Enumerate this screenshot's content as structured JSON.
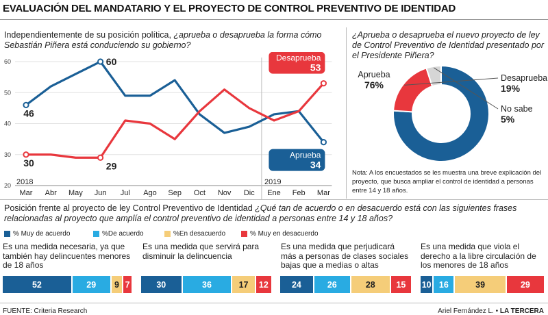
{
  "title": "EVALUACIÓN DEL MANDATARIO Y EL PROYECTO DE CONTROL PREVENTIVO DE IDENTIDAD",
  "colors": {
    "blue": "#1a5f96",
    "red": "#e8373d",
    "lightblue": "#29abe2",
    "yellow": "#f5cd79",
    "grey": "#d6d6d6"
  },
  "left_question": {
    "plain": "Independientemente de su posición política, ",
    "italic": "¿aprueba o desaprueba la forma cómo Sebastián Piñera está conduciendo su gobierno?"
  },
  "right_question": "¿Aprueba o desaprueba el nuevo proyecto de ley de Control Preventivo de Identidad presentado por el Presidente Piñera?",
  "note": "Nota: A los encuestados se les muestra una breve explicación del proyecto, que busca ampliar el control de identidad a personas entre 14 y 18 años.",
  "bottom_question": {
    "plain": "Posición frente al proyecto de ley Control Preventivo de Identidad ",
    "italic": "¿Qué tan de acuerdo o en desacuerdo está con las siguientes frases relacionadas al proyecto que amplía el control preventivo de identidad a personas entre 14 y 18 años?"
  },
  "legend": [
    "% Muy de acuerdo",
    "%De acuerdo",
    "%En desacuerdo",
    "% Muy en desacuerdo"
  ],
  "statements": [
    "Es una medida necesaria, ya que también hay delincuentes menores de 18 años",
    "Es una medida que servirá para disminuir la delincuencia",
    "Es una medida que perjudicará más a personas de clases sociales bajas que a medias o altas",
    "Es una medida que viola el derecho a la libre circulación de los menores de 18 años"
  ],
  "source": "FUENTE: Criteria Research",
  "credit_author": "Ariel Fernández L. •",
  "credit_outlet": "LA TERCERA",
  "chart_data": [
    {
      "type": "line",
      "x": [
        "Mar",
        "Abr",
        "May",
        "Jun",
        "Jul",
        "Ago",
        "Sep",
        "Oct",
        "Nov",
        "Dic",
        "Ene",
        "Feb",
        "Mar"
      ],
      "year_labels": [
        {
          "label": "2018",
          "index": 0
        },
        {
          "label": "2019",
          "index": 10
        }
      ],
      "ylim": [
        20,
        60
      ],
      "yticks": [
        20,
        30,
        40,
        50,
        60
      ],
      "series": [
        {
          "name": "Aprueba",
          "color": "#1a5f96",
          "values": [
            46,
            52,
            56,
            60,
            49,
            49,
            54,
            43,
            37,
            39,
            43,
            44,
            34
          ]
        },
        {
          "name": "Desaprueba",
          "color": "#e8373d",
          "values": [
            30,
            30,
            29,
            29,
            41,
            40,
            35,
            44,
            51,
            45,
            41,
            44,
            53
          ]
        }
      ],
      "point_labels": [
        {
          "series": 0,
          "index": 0,
          "text": "46"
        },
        {
          "series": 0,
          "index": 3,
          "text": "60"
        },
        {
          "series": 1,
          "index": 0,
          "text": "30"
        },
        {
          "series": 1,
          "index": 3,
          "text": "29"
        }
      ],
      "end_badges": [
        {
          "series": 1,
          "label": "Desaprueba",
          "value": "53"
        },
        {
          "series": 0,
          "label": "Aprueba",
          "value": "34"
        }
      ]
    },
    {
      "type": "pie",
      "slices": [
        {
          "label": "Aprueba",
          "value": 76,
          "display": "76%",
          "color": "#1a5f96"
        },
        {
          "label": "Desaprueba",
          "value": 19,
          "display": "19%",
          "color": "#e8373d"
        },
        {
          "label": "No sabe",
          "value": 5,
          "display": "5%",
          "color": "#d6d6d6"
        }
      ]
    },
    {
      "type": "bar",
      "stacked": true,
      "orientation": "horizontal",
      "categories": [
        "Es una medida necesaria, ya que también hay delincuentes menores de 18 años",
        "Es una medida que servirá para disminuir la delincuencia",
        "Es una medida que perjudicará más a personas de clases sociales bajas que a medias o altas",
        "Es una medida que viola el derecho a la libre circulación de los menores de 18 años"
      ],
      "series": [
        {
          "name": "% Muy de acuerdo",
          "color": "#1a5f96",
          "values": [
            52,
            30,
            24,
            10
          ]
        },
        {
          "name": "%De acuerdo",
          "color": "#29abe2",
          "values": [
            29,
            36,
            26,
            16
          ]
        },
        {
          "name": "%En desacuerdo",
          "color": "#f5cd79",
          "values": [
            9,
            17,
            28,
            39
          ]
        },
        {
          "name": "% Muy en desacuerdo",
          "color": "#e8373d",
          "values": [
            7,
            12,
            15,
            29
          ]
        }
      ]
    }
  ]
}
